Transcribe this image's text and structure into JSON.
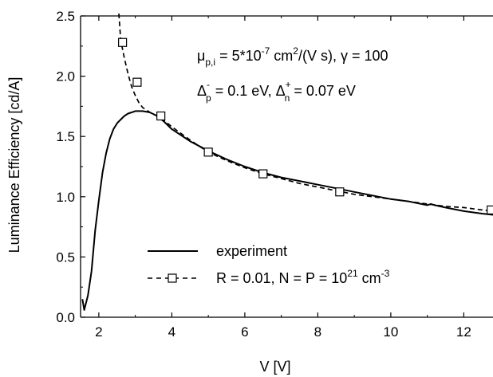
{
  "chart_data": {
    "type": "line",
    "xlabel": "V [V]",
    "ylabel": "Luminance Efficiency [cd/A]",
    "xlim": [
      1.5,
      12.8
    ],
    "ylim": [
      0.0,
      2.5
    ],
    "x_ticks": [
      2,
      4,
      6,
      8,
      10,
      12
    ],
    "x_tick_labels": [
      "2",
      "4",
      "6",
      "8",
      "10",
      "12"
    ],
    "y_ticks": [
      0.0,
      0.5,
      1.0,
      1.5,
      2.0,
      2.5
    ],
    "y_tick_labels": [
      "0.0",
      "0.5",
      "1.0",
      "1.5",
      "2.0",
      "2.5"
    ],
    "grid": false,
    "legend_position": "bottom-center",
    "annotations": {
      "line1": {
        "mu": "μ",
        "mu_sub": "p,i",
        "eq1": " = 5*10",
        "exp1": "-7",
        "mid": " cm",
        "exp2": "2",
        "tail": "/(V s), γ = 100"
      },
      "line2": {
        "delta_p": "Δ",
        "dp_sup": "-",
        "dp_sub": "p",
        "dp_val": " = 0.1 eV,   ",
        "delta_n": "Δ",
        "dn_sup": "+",
        "dn_sub": "n",
        "dn_val": " = 0.07 eV"
      }
    },
    "series": [
      {
        "name": "experiment",
        "style": "solid",
        "color": "#000000",
        "x": [
          1.55,
          1.6,
          1.7,
          1.8,
          1.9,
          2.0,
          2.1,
          2.2,
          2.3,
          2.4,
          2.5,
          2.6,
          2.7,
          2.8,
          2.9,
          3.0,
          3.1,
          3.2,
          3.4,
          3.6,
          3.8,
          4.0,
          4.5,
          5.0,
          5.5,
          6.0,
          6.5,
          7.0,
          7.5,
          8.0,
          8.5,
          9.0,
          9.5,
          10.0,
          10.5,
          11.0,
          11.1,
          11.2,
          11.5,
          12.0,
          12.5,
          12.8
        ],
        "y": [
          0.15,
          0.06,
          0.18,
          0.38,
          0.72,
          0.97,
          1.2,
          1.36,
          1.48,
          1.56,
          1.61,
          1.64,
          1.67,
          1.69,
          1.7,
          1.71,
          1.71,
          1.71,
          1.7,
          1.67,
          1.62,
          1.56,
          1.46,
          1.38,
          1.31,
          1.25,
          1.2,
          1.16,
          1.13,
          1.1,
          1.07,
          1.04,
          1.01,
          0.98,
          0.96,
          0.93,
          0.94,
          0.93,
          0.91,
          0.88,
          0.86,
          0.85
        ]
      },
      {
        "name_parts": {
          "prefix": "R = 0.01, N = P = 10",
          "exp": "21",
          "unit": " cm",
          "unit_exp": "-3"
        },
        "style": "dashed",
        "marker": "open-square",
        "color": "#000000",
        "x": [
          2.55,
          2.6,
          2.7,
          2.8,
          2.9,
          3.0,
          3.1,
          3.2,
          3.4,
          3.6,
          3.8,
          4.0,
          4.5,
          5.0,
          5.5,
          6.0,
          6.5,
          7.0,
          7.5,
          8.0,
          8.5,
          9.0,
          9.5,
          10.0,
          10.5,
          11.0,
          11.5,
          12.0,
          12.5,
          12.8
        ],
        "y": [
          2.52,
          2.3,
          2.15,
          2.02,
          1.91,
          1.84,
          1.78,
          1.74,
          1.7,
          1.67,
          1.63,
          1.58,
          1.47,
          1.37,
          1.3,
          1.24,
          1.19,
          1.15,
          1.11,
          1.08,
          1.05,
          1.02,
          1.0,
          0.98,
          0.96,
          0.94,
          0.92,
          0.91,
          0.89,
          0.88
        ],
        "marker_x": [
          2.65,
          3.05,
          3.7,
          5.0,
          6.5,
          8.6,
          12.75
        ],
        "marker_y": [
          2.28,
          1.95,
          1.67,
          1.37,
          1.19,
          1.04,
          0.89
        ]
      }
    ]
  }
}
